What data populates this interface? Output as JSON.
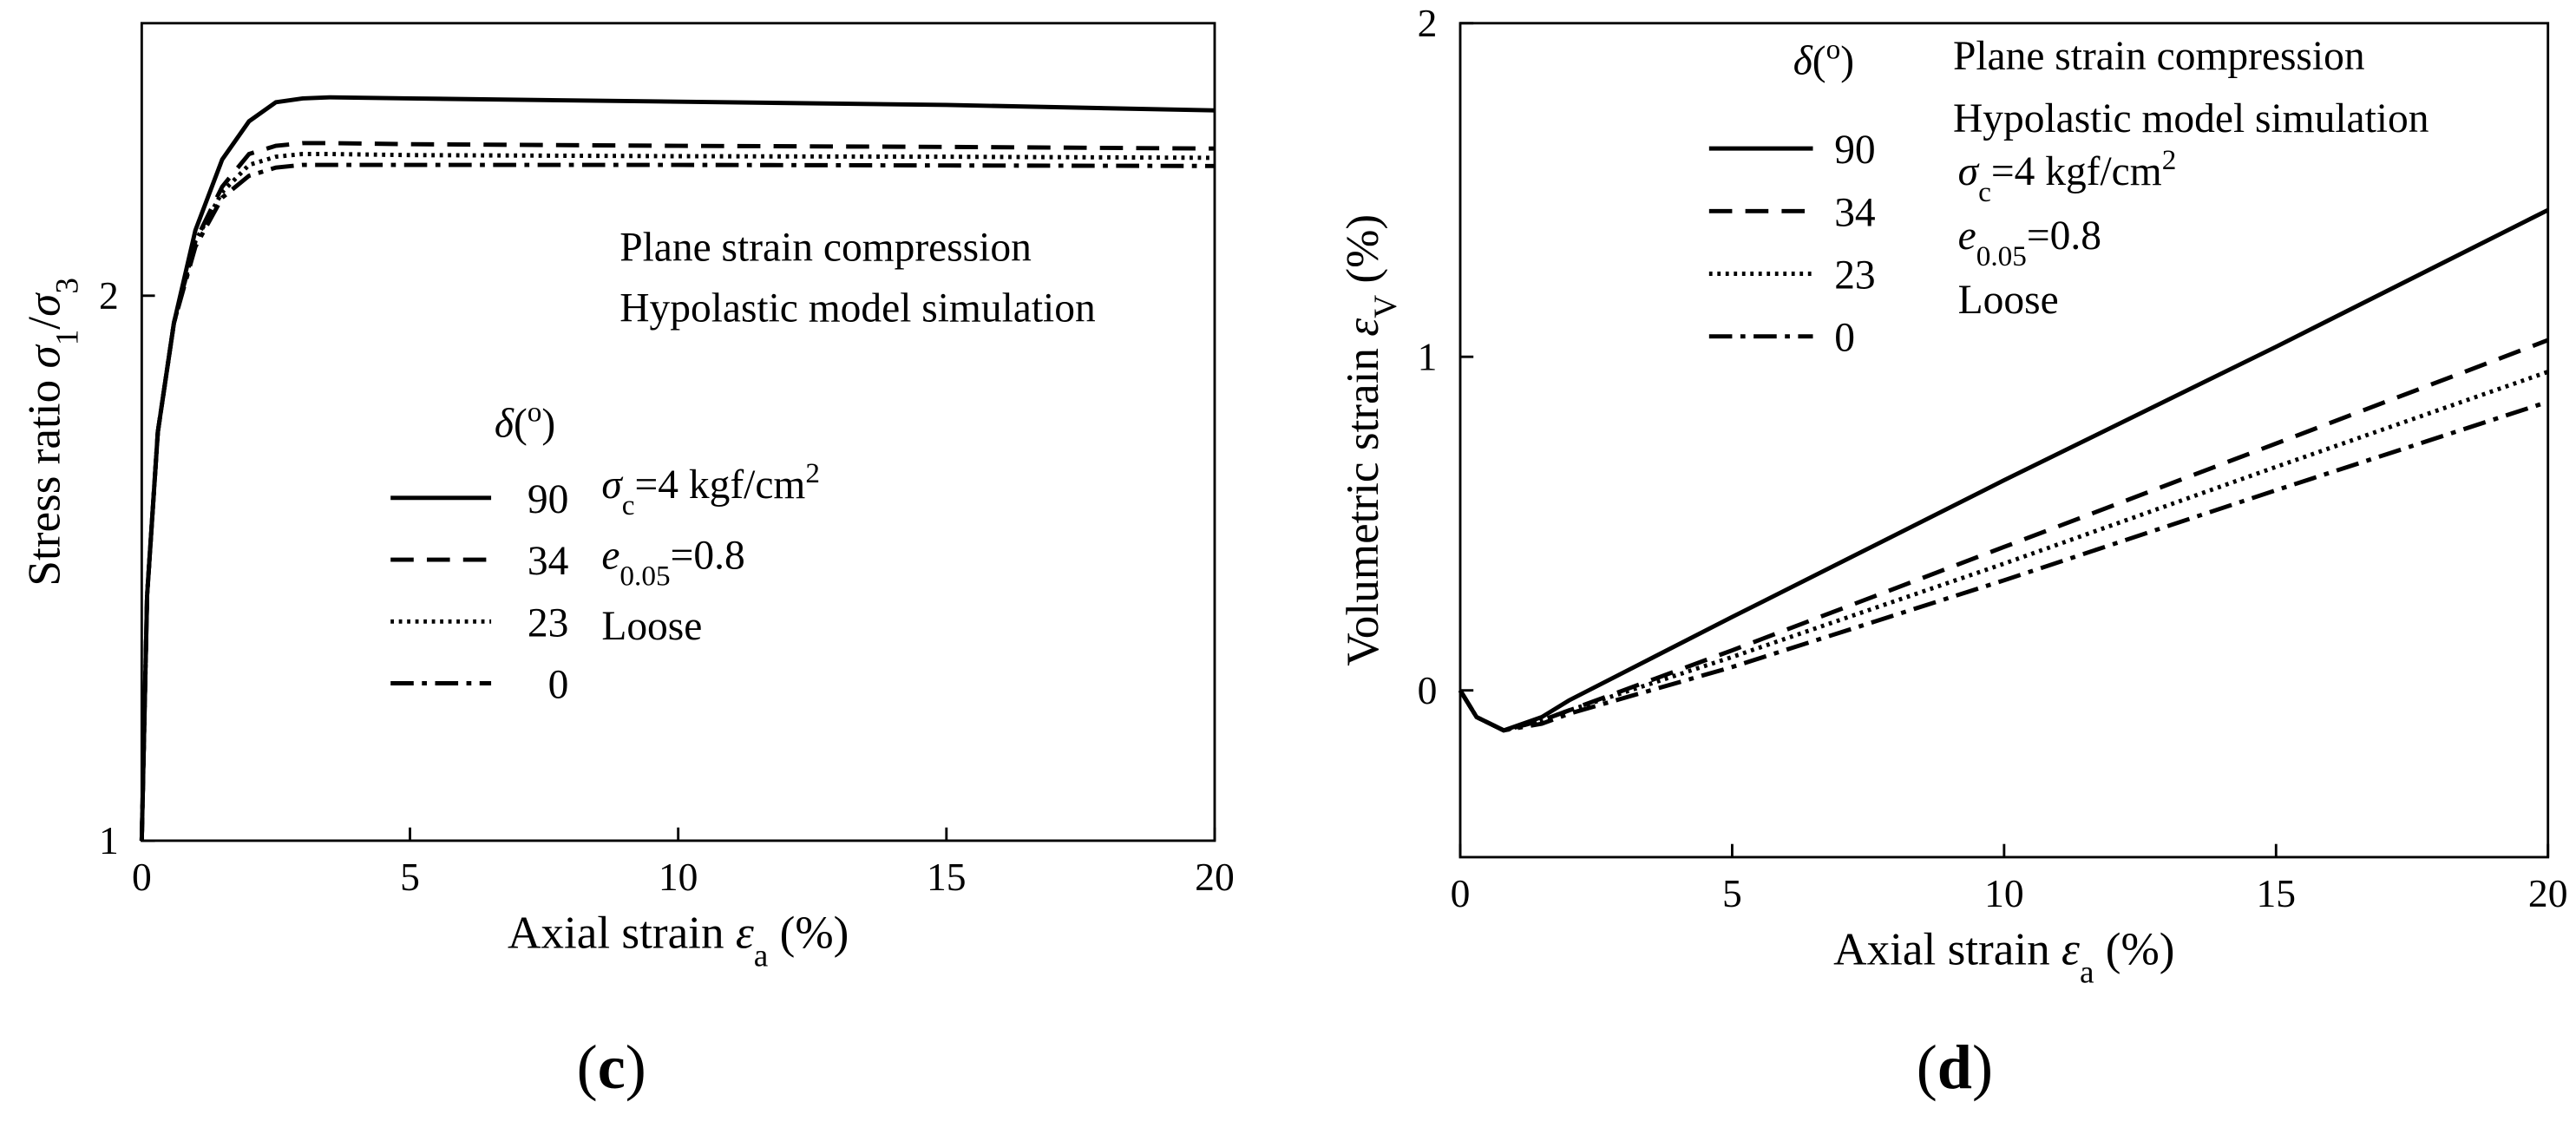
{
  "chart_data": [
    {
      "type": "line",
      "panel_label": [
        {
          "text": "("
        },
        {
          "text": "c",
          "bold": true
        },
        {
          "text": ")"
        }
      ],
      "x_label": [
        {
          "text": "Axial strain "
        },
        {
          "text": "ε",
          "italic": true
        },
        {
          "text": "a",
          "script": "sub"
        },
        {
          "text": " (%)"
        }
      ],
      "y_label": [
        {
          "text": "Stress ratio "
        },
        {
          "text": "σ",
          "italic": true
        },
        {
          "text": "1",
          "script": "sub"
        },
        {
          "text": "/"
        },
        {
          "text": "σ",
          "italic": true
        },
        {
          "text": "3",
          "script": "sub"
        }
      ],
      "annotations": [
        "Plane strain compression",
        "Hypolastic model simulation"
      ],
      "conditions": [
        [
          {
            "text": "σ",
            "italic": true
          },
          {
            "text": "c",
            "script": "sub"
          },
          {
            "text": "=4 kgf/cm"
          },
          {
            "text": "2",
            "script": "sup"
          }
        ],
        [
          {
            "text": "e",
            "italic": true
          },
          {
            "text": "0.05",
            "script": "sub"
          },
          {
            "text": "=0.8"
          }
        ],
        [
          {
            "text": "Loose"
          }
        ]
      ],
      "legend_title": [
        {
          "text": "δ",
          "italic": true
        },
        {
          "text": "("
        },
        {
          "text": "o",
          "script": "sup"
        },
        {
          "text": ")"
        }
      ],
      "x": [
        0,
        0.1,
        0.3,
        0.6,
        1,
        1.5,
        2,
        2.5,
        3,
        3.5,
        5,
        10,
        15,
        20
      ],
      "series": [
        {
          "name": "90",
          "color": "#000000",
          "dash": "solid",
          "values": [
            1,
            1.45,
            1.75,
            1.95,
            2.12,
            2.25,
            2.32,
            2.355,
            2.362,
            2.364,
            2.362,
            2.356,
            2.35,
            2.34
          ]
        },
        {
          "name": "34",
          "color": "#000000",
          "dash": "dash",
          "values": [
            1,
            1.45,
            1.75,
            1.95,
            2.1,
            2.2,
            2.26,
            2.275,
            2.28,
            2.28,
            2.278,
            2.275,
            2.273,
            2.27
          ]
        },
        {
          "name": "23",
          "color": "#000000",
          "dash": "dot",
          "values": [
            1,
            1.45,
            1.75,
            1.95,
            2.1,
            2.19,
            2.24,
            2.255,
            2.26,
            2.26,
            2.258,
            2.256,
            2.255,
            2.253
          ]
        },
        {
          "name": "0",
          "color": "#000000",
          "dash": "dashdot",
          "values": [
            1,
            1.45,
            1.75,
            1.95,
            2.09,
            2.18,
            2.22,
            2.235,
            2.24,
            2.24,
            2.24,
            2.24,
            2.239,
            2.238
          ]
        }
      ],
      "xlim": [
        0,
        20
      ],
      "xticks": [
        0,
        5,
        10,
        15,
        20
      ],
      "ylim": [
        1,
        2.5
      ],
      "yticks": [
        1,
        2
      ]
    },
    {
      "type": "line",
      "panel_label": [
        {
          "text": "("
        },
        {
          "text": "d",
          "bold": true
        },
        {
          "text": ")"
        }
      ],
      "x_label": [
        {
          "text": "Axial strain "
        },
        {
          "text": "ε",
          "italic": true
        },
        {
          "text": "a",
          "script": "sub"
        },
        {
          "text": " (%)"
        }
      ],
      "y_label": [
        {
          "text": "Volumetric strain "
        },
        {
          "text": "ε",
          "italic": true
        },
        {
          "text": "V",
          "script": "sub"
        },
        {
          "text": " (%)"
        }
      ],
      "annotations": [
        "Plane strain compression",
        "Hypolastic model simulation"
      ],
      "conditions": [
        [
          {
            "text": "σ",
            "italic": true
          },
          {
            "text": "c",
            "script": "sub"
          },
          {
            "text": "=4 kgf/cm"
          },
          {
            "text": "2",
            "script": "sup"
          }
        ],
        [
          {
            "text": "e",
            "italic": true
          },
          {
            "text": "0.05",
            "script": "sub"
          },
          {
            "text": "=0.8"
          }
        ],
        [
          {
            "text": "Loose"
          }
        ]
      ],
      "legend_title": [
        {
          "text": "δ",
          "italic": true
        },
        {
          "text": "("
        },
        {
          "text": "o",
          "script": "sup"
        },
        {
          "text": ")"
        }
      ],
      "x": [
        0,
        0.3,
        0.8,
        1.5,
        2,
        5,
        10,
        15,
        20
      ],
      "series": [
        {
          "name": "90",
          "color": "#000000",
          "dash": "solid",
          "values": [
            0,
            -0.08,
            -0.12,
            -0.08,
            -0.03,
            0.22,
            0.63,
            1.03,
            1.44
          ]
        },
        {
          "name": "34",
          "color": "#000000",
          "dash": "dash",
          "values": [
            0,
            -0.08,
            -0.12,
            -0.09,
            -0.06,
            0.12,
            0.43,
            0.74,
            1.05
          ]
        },
        {
          "name": "23",
          "color": "#000000",
          "dash": "dot",
          "values": [
            0,
            -0.08,
            -0.12,
            -0.09,
            -0.06,
            0.1,
            0.38,
            0.67,
            0.955
          ]
        },
        {
          "name": "0",
          "color": "#000000",
          "dash": "dashdot",
          "values": [
            0,
            -0.08,
            -0.12,
            -0.1,
            -0.07,
            0.07,
            0.33,
            0.6,
            0.865
          ]
        }
      ],
      "xlim": [
        0,
        20
      ],
      "xticks": [
        0,
        5,
        10,
        15,
        20
      ],
      "ylim": [
        -0.5,
        2
      ],
      "yticks": [
        0,
        1,
        2
      ]
    }
  ]
}
